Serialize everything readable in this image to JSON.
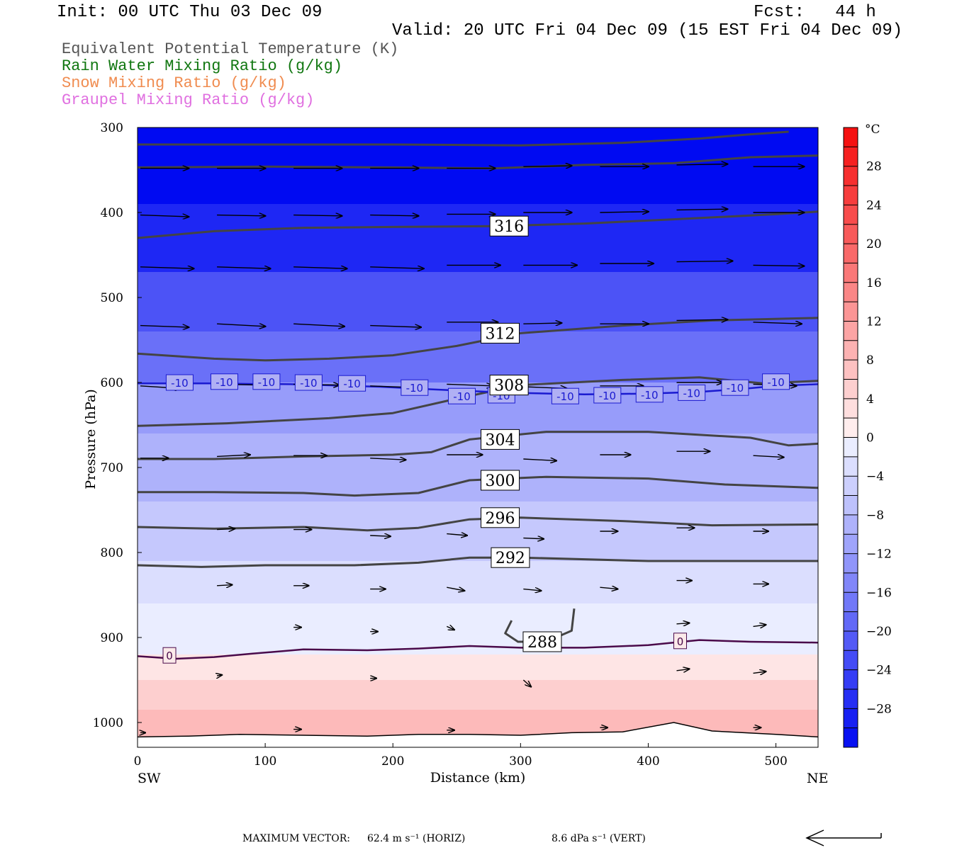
{
  "header": {
    "init": "Init: 00 UTC Thu 03 Dec 09",
    "fcst": "Fcst:   44 h",
    "valid": "Valid: 20 UTC Fri 04 Dec 09 (15 EST Fri 04 Dec 09)"
  },
  "legend": [
    {
      "label": "Equivalent Potential Temperature (K)",
      "color": "#555555"
    },
    {
      "label": "Rain Water Mixing Ratio (g/kg)",
      "color": "#117711"
    },
    {
      "label": "Snow Mixing Ratio (g/kg)",
      "color": "#f08c50"
    },
    {
      "label": "Graupel Mixing Ratio (g/kg)",
      "color": "#e070e0"
    }
  ],
  "footer": {
    "max_vector_label": "MAXIMUM VECTOR:",
    "horiz": "62.4 m s⁻¹ (HORIZ)",
    "vert": "8.6 dPa s⁻¹ (VERT)"
  },
  "chart_data": {
    "type": "heatmap",
    "xlabel": "Distance (km)",
    "ylabel": "Pressure (hPa)",
    "x_start_label": "SW",
    "x_end_label": "NE",
    "xlim": [
      0,
      533
    ],
    "ylim": [
      1028,
      300
    ],
    "xticks": [
      0,
      100,
      200,
      300,
      400,
      500
    ],
    "yticks": [
      300,
      400,
      500,
      600,
      700,
      800,
      900,
      1000
    ],
    "colorbar": {
      "unit": "°C",
      "levels": [
        -32,
        -30,
        -28,
        -26,
        -24,
        -22,
        -20,
        -18,
        -16,
        -14,
        -12,
        -10,
        -8,
        -6,
        -4,
        -2,
        0,
        2,
        4,
        6,
        8,
        10,
        12,
        14,
        16,
        18,
        20,
        22,
        24,
        26,
        28,
        30,
        32
      ],
      "tick_labels": [
        28,
        24,
        20,
        16,
        12,
        8,
        4,
        0,
        -4,
        -8,
        -12,
        -16,
        -20,
        -24,
        -28
      ]
    },
    "temperature_bands": [
      {
        "p_top": 300,
        "p_bottom": 390,
        "temp": -32
      },
      {
        "p_top": 390,
        "p_bottom": 470,
        "temp": -28
      },
      {
        "p_top": 470,
        "p_bottom": 540,
        "temp": -22
      },
      {
        "p_top": 540,
        "p_bottom": 600,
        "temp": -18
      },
      {
        "p_top": 600,
        "p_bottom": 660,
        "temp": -12
      },
      {
        "p_top": 660,
        "p_bottom": 740,
        "temp": -9
      },
      {
        "p_top": 740,
        "p_bottom": 810,
        "temp": -6
      },
      {
        "p_top": 810,
        "p_bottom": 860,
        "temp": -3
      },
      {
        "p_top": 860,
        "p_bottom": 920,
        "temp": -1
      },
      {
        "p_top": 920,
        "p_bottom": 950,
        "temp": 2
      },
      {
        "p_top": 950,
        "p_bottom": 985,
        "temp": 5
      },
      {
        "p_top": 985,
        "p_bottom": 1028,
        "temp": 8
      }
    ],
    "theta_e_contours": [
      {
        "value": 288,
        "label": "288",
        "label_x": 317,
        "points": [
          [
            293,
            880
          ],
          [
            288,
            895
          ],
          [
            298,
            905
          ],
          [
            320,
            905
          ],
          [
            340,
            892
          ],
          [
            342,
            866
          ]
        ]
      },
      {
        "value": 292,
        "label": "292",
        "label_x": 292,
        "points": [
          [
            0,
            815
          ],
          [
            50,
            817
          ],
          [
            100,
            815
          ],
          [
            170,
            815
          ],
          [
            220,
            812
          ],
          [
            260,
            806
          ],
          [
            300,
            806
          ],
          [
            400,
            810
          ],
          [
            533,
            810
          ]
        ]
      },
      {
        "value": 296,
        "label": "296",
        "label_x": 284,
        "points": [
          [
            0,
            770
          ],
          [
            60,
            772
          ],
          [
            130,
            770
          ],
          [
            180,
            774
          ],
          [
            220,
            771
          ],
          [
            260,
            761
          ],
          [
            300,
            759
          ],
          [
            380,
            763
          ],
          [
            450,
            768
          ],
          [
            533,
            767
          ]
        ]
      },
      {
        "value": 300,
        "label": "300",
        "label_x": 284,
        "points": [
          [
            0,
            729
          ],
          [
            60,
            729
          ],
          [
            130,
            730
          ],
          [
            170,
            733
          ],
          [
            220,
            730
          ],
          [
            260,
            715
          ],
          [
            320,
            711
          ],
          [
            400,
            713
          ],
          [
            460,
            720
          ],
          [
            533,
            724
          ]
        ]
      },
      {
        "value": 304,
        "label": "304",
        "label_x": 284,
        "points": [
          [
            0,
            690
          ],
          [
            60,
            690
          ],
          [
            130,
            687
          ],
          [
            200,
            685
          ],
          [
            230,
            682
          ],
          [
            260,
            667
          ],
          [
            320,
            658
          ],
          [
            400,
            658
          ],
          [
            480,
            665
          ],
          [
            510,
            674
          ],
          [
            533,
            672
          ]
        ]
      },
      {
        "value": 308,
        "label": "308",
        "label_x": 291,
        "points": [
          [
            0,
            651
          ],
          [
            70,
            648
          ],
          [
            150,
            642
          ],
          [
            200,
            636
          ],
          [
            250,
            619
          ],
          [
            300,
            603
          ],
          [
            380,
            597
          ],
          [
            440,
            594
          ],
          [
            490,
            601
          ],
          [
            533,
            598
          ]
        ]
      },
      {
        "value": 312,
        "label": "312",
        "label_x": 284,
        "points": [
          [
            0,
            566
          ],
          [
            60,
            572
          ],
          [
            100,
            574
          ],
          [
            150,
            572
          ],
          [
            200,
            568
          ],
          [
            250,
            557
          ],
          [
            300,
            542
          ],
          [
            380,
            533
          ],
          [
            450,
            527
          ],
          [
            533,
            524
          ]
        ]
      },
      {
        "value": 316,
        "label": "316",
        "label_x": 291,
        "points": [
          [
            0,
            430
          ],
          [
            60,
            422
          ],
          [
            130,
            418
          ],
          [
            200,
            417
          ],
          [
            280,
            416
          ],
          [
            350,
            413
          ],
          [
            420,
            408
          ],
          [
            500,
            402
          ],
          [
            533,
            399
          ]
        ]
      },
      {
        "value": 320,
        "label": "",
        "label_x": null,
        "points": [
          [
            0,
            347
          ],
          [
            100,
            346
          ],
          [
            200,
            347
          ],
          [
            280,
            348
          ],
          [
            350,
            344
          ],
          [
            420,
            342
          ],
          [
            480,
            335
          ],
          [
            533,
            333
          ]
        ]
      },
      {
        "value": 324,
        "label": "",
        "label_x": null,
        "points": [
          [
            0,
            320
          ],
          [
            100,
            320
          ],
          [
            200,
            320
          ],
          [
            300,
            321
          ],
          [
            380,
            318
          ],
          [
            440,
            313
          ],
          [
            480,
            308
          ],
          [
            510,
            305
          ]
        ]
      }
    ],
    "isotherm_minus10": {
      "label": "-10",
      "color": "#1a1ad0",
      "points": [
        [
          0,
          601
        ],
        [
          60,
          601
        ],
        [
          120,
          602
        ],
        [
          190,
          605
        ],
        [
          230,
          608
        ],
        [
          290,
          612
        ],
        [
          350,
          614
        ],
        [
          400,
          613
        ],
        [
          440,
          611
        ],
        [
          470,
          608
        ],
        [
          500,
          604
        ],
        [
          533,
          602
        ]
      ],
      "label_positions": [
        [
          33,
          600
        ],
        [
          68,
          599
        ],
        [
          101,
          599
        ],
        [
          134,
          600
        ],
        [
          168,
          601
        ],
        [
          217,
          606
        ],
        [
          254,
          616
        ],
        [
          285,
          615
        ],
        [
          335,
          616
        ],
        [
          368,
          615
        ],
        [
          401,
          614
        ],
        [
          434,
          612
        ],
        [
          468,
          606
        ],
        [
          500,
          599
        ]
      ]
    },
    "isotherm_0": {
      "label": "0",
      "color": "#4a0a4a",
      "points": [
        [
          0,
          922
        ],
        [
          30,
          925
        ],
        [
          60,
          923
        ],
        [
          90,
          919
        ],
        [
          130,
          914
        ],
        [
          180,
          915
        ],
        [
          220,
          913
        ],
        [
          260,
          910
        ],
        [
          300,
          912
        ],
        [
          350,
          912
        ],
        [
          400,
          909
        ],
        [
          440,
          903
        ],
        [
          480,
          905
        ],
        [
          533,
          906
        ]
      ],
      "label_positions": [
        [
          25,
          921
        ],
        [
          425,
          904
        ]
      ]
    },
    "surface_line": [
      [
        0,
        1017
      ],
      [
        40,
        1016
      ],
      [
        80,
        1014
      ],
      [
        130,
        1015
      ],
      [
        180,
        1016
      ],
      [
        220,
        1014
      ],
      [
        260,
        1014
      ],
      [
        300,
        1015
      ],
      [
        340,
        1012
      ],
      [
        380,
        1011
      ],
      [
        420,
        1000
      ],
      [
        450,
        1010
      ],
      [
        500,
        1014
      ],
      [
        533,
        1017
      ]
    ],
    "wind_vectors": [
      {
        "x": 0,
        "p": 348,
        "dx": 38,
        "dp": 0
      },
      {
        "x": 60,
        "p": 348,
        "dx": 38,
        "dp": 0
      },
      {
        "x": 120,
        "p": 348,
        "dx": 38,
        "dp": 0
      },
      {
        "x": 180,
        "p": 348,
        "dx": 38,
        "dp": 0
      },
      {
        "x": 240,
        "p": 348,
        "dx": 38,
        "dp": 0
      },
      {
        "x": 300,
        "p": 346,
        "dx": 38,
        "dp": -1
      },
      {
        "x": 360,
        "p": 346,
        "dx": 38,
        "dp": 0
      },
      {
        "x": 420,
        "p": 344,
        "dx": 40,
        "dp": -1
      },
      {
        "x": 480,
        "p": 346,
        "dx": 40,
        "dp": 0
      },
      {
        "x": 0,
        "p": 403,
        "dx": 38,
        "dp": 2
      },
      {
        "x": 60,
        "p": 403,
        "dx": 38,
        "dp": 1
      },
      {
        "x": 120,
        "p": 403,
        "dx": 38,
        "dp": 1
      },
      {
        "x": 180,
        "p": 403,
        "dx": 38,
        "dp": 1
      },
      {
        "x": 240,
        "p": 402,
        "dx": 38,
        "dp": 0
      },
      {
        "x": 300,
        "p": 400,
        "dx": 38,
        "dp": 0
      },
      {
        "x": 360,
        "p": 400,
        "dx": 38,
        "dp": -1
      },
      {
        "x": 420,
        "p": 397,
        "dx": 40,
        "dp": -1
      },
      {
        "x": 480,
        "p": 400,
        "dx": 40,
        "dp": 0
      },
      {
        "x": 0,
        "p": 464,
        "dx": 42,
        "dp": 2
      },
      {
        "x": 60,
        "p": 464,
        "dx": 42,
        "dp": 2
      },
      {
        "x": 120,
        "p": 464,
        "dx": 42,
        "dp": 2
      },
      {
        "x": 180,
        "p": 464,
        "dx": 42,
        "dp": 2
      },
      {
        "x": 240,
        "p": 462,
        "dx": 42,
        "dp": 0
      },
      {
        "x": 300,
        "p": 462,
        "dx": 42,
        "dp": 0
      },
      {
        "x": 360,
        "p": 460,
        "dx": 42,
        "dp": 0
      },
      {
        "x": 420,
        "p": 458,
        "dx": 44,
        "dp": -1
      },
      {
        "x": 480,
        "p": 462,
        "dx": 40,
        "dp": 1
      },
      {
        "x": 0,
        "p": 533,
        "dx": 38,
        "dp": 2
      },
      {
        "x": 60,
        "p": 531,
        "dx": 38,
        "dp": 3
      },
      {
        "x": 120,
        "p": 531,
        "dx": 40,
        "dp": 3
      },
      {
        "x": 180,
        "p": 533,
        "dx": 40,
        "dp": 2
      },
      {
        "x": 240,
        "p": 529,
        "dx": 40,
        "dp": 0
      },
      {
        "x": 300,
        "p": 531,
        "dx": 30,
        "dp": -1
      },
      {
        "x": 360,
        "p": 531,
        "dx": 38,
        "dp": 0
      },
      {
        "x": 420,
        "p": 527,
        "dx": 40,
        "dp": -1
      },
      {
        "x": 480,
        "p": 529,
        "dx": 38,
        "dp": 2
      },
      {
        "x": 0,
        "p": 604,
        "dx": 32,
        "dp": 3
      },
      {
        "x": 60,
        "p": 602,
        "dx": 34,
        "dp": 1
      },
      {
        "x": 120,
        "p": 602,
        "dx": 36,
        "dp": 1
      },
      {
        "x": 180,
        "p": 604,
        "dx": 36,
        "dp": 2
      },
      {
        "x": 240,
        "p": 602,
        "dx": 36,
        "dp": 2
      },
      {
        "x": 300,
        "p": 605,
        "dx": 34,
        "dp": 2
      },
      {
        "x": 360,
        "p": 604,
        "dx": 34,
        "dp": 0
      },
      {
        "x": 420,
        "p": 600,
        "dx": 36,
        "dp": 0
      },
      {
        "x": 480,
        "p": 602,
        "dx": 34,
        "dp": 2
      },
      {
        "x": 0,
        "p": 689,
        "dx": 22,
        "dp": 0
      },
      {
        "x": 60,
        "p": 687,
        "dx": 26,
        "dp": -2
      },
      {
        "x": 120,
        "p": 686,
        "dx": 26,
        "dp": 0
      },
      {
        "x": 180,
        "p": 689,
        "dx": 28,
        "dp": 2
      },
      {
        "x": 240,
        "p": 685,
        "dx": 28,
        "dp": 0
      },
      {
        "x": 300,
        "p": 690,
        "dx": 26,
        "dp": 2
      },
      {
        "x": 360,
        "p": 685,
        "dx": 24,
        "dp": 0
      },
      {
        "x": 420,
        "p": 681,
        "dx": 26,
        "dp": 0
      },
      {
        "x": 480,
        "p": 686,
        "dx": 24,
        "dp": 2
      },
      {
        "x": 60,
        "p": 773,
        "dx": 14,
        "dp": -1
      },
      {
        "x": 120,
        "p": 773,
        "dx": 14,
        "dp": 0
      },
      {
        "x": 180,
        "p": 780,
        "dx": 16,
        "dp": 1
      },
      {
        "x": 240,
        "p": 778,
        "dx": 16,
        "dp": 2
      },
      {
        "x": 300,
        "p": 783,
        "dx": 16,
        "dp": 1
      },
      {
        "x": 360,
        "p": 775,
        "dx": 14,
        "dp": 0
      },
      {
        "x": 420,
        "p": 771,
        "dx": 14,
        "dp": 0
      },
      {
        "x": 480,
        "p": 775,
        "dx": 12,
        "dp": 0
      },
      {
        "x": 60,
        "p": 839,
        "dx": 12,
        "dp": -1
      },
      {
        "x": 120,
        "p": 839,
        "dx": 12,
        "dp": 0
      },
      {
        "x": 180,
        "p": 843,
        "dx": 12,
        "dp": 0
      },
      {
        "x": 240,
        "p": 841,
        "dx": 14,
        "dp": 4
      },
      {
        "x": 300,
        "p": 843,
        "dx": 14,
        "dp": 2
      },
      {
        "x": 360,
        "p": 841,
        "dx": 14,
        "dp": 2
      },
      {
        "x": 420,
        "p": 833,
        "dx": 12,
        "dp": 0
      },
      {
        "x": 480,
        "p": 837,
        "dx": 12,
        "dp": 0
      },
      {
        "x": 120,
        "p": 888,
        "dx": 6,
        "dp": 0
      },
      {
        "x": 180,
        "p": 893,
        "dx": 6,
        "dp": 0
      },
      {
        "x": 240,
        "p": 887,
        "dx": 6,
        "dp": 4
      },
      {
        "x": 420,
        "p": 884,
        "dx": 10,
        "dp": -1
      },
      {
        "x": 480,
        "p": 887,
        "dx": 10,
        "dp": -2
      },
      {
        "x": 60,
        "p": 945,
        "dx": 4,
        "dp": -1
      },
      {
        "x": 180,
        "p": 948,
        "dx": 5,
        "dp": 0
      },
      {
        "x": 300,
        "p": 950,
        "dx": 6,
        "dp": 8
      },
      {
        "x": 420,
        "p": 939,
        "dx": 10,
        "dp": -2
      },
      {
        "x": 480,
        "p": 942,
        "dx": 10,
        "dp": -2
      },
      {
        "x": 0,
        "p": 1012,
        "dx": 4,
        "dp": 0
      },
      {
        "x": 120,
        "p": 1008,
        "dx": 6,
        "dp": 0
      },
      {
        "x": 240,
        "p": 1009,
        "dx": 6,
        "dp": 0
      },
      {
        "x": 360,
        "p": 1006,
        "dx": 6,
        "dp": 0
      },
      {
        "x": 480,
        "p": 1006,
        "dx": 6,
        "dp": 0
      }
    ]
  }
}
